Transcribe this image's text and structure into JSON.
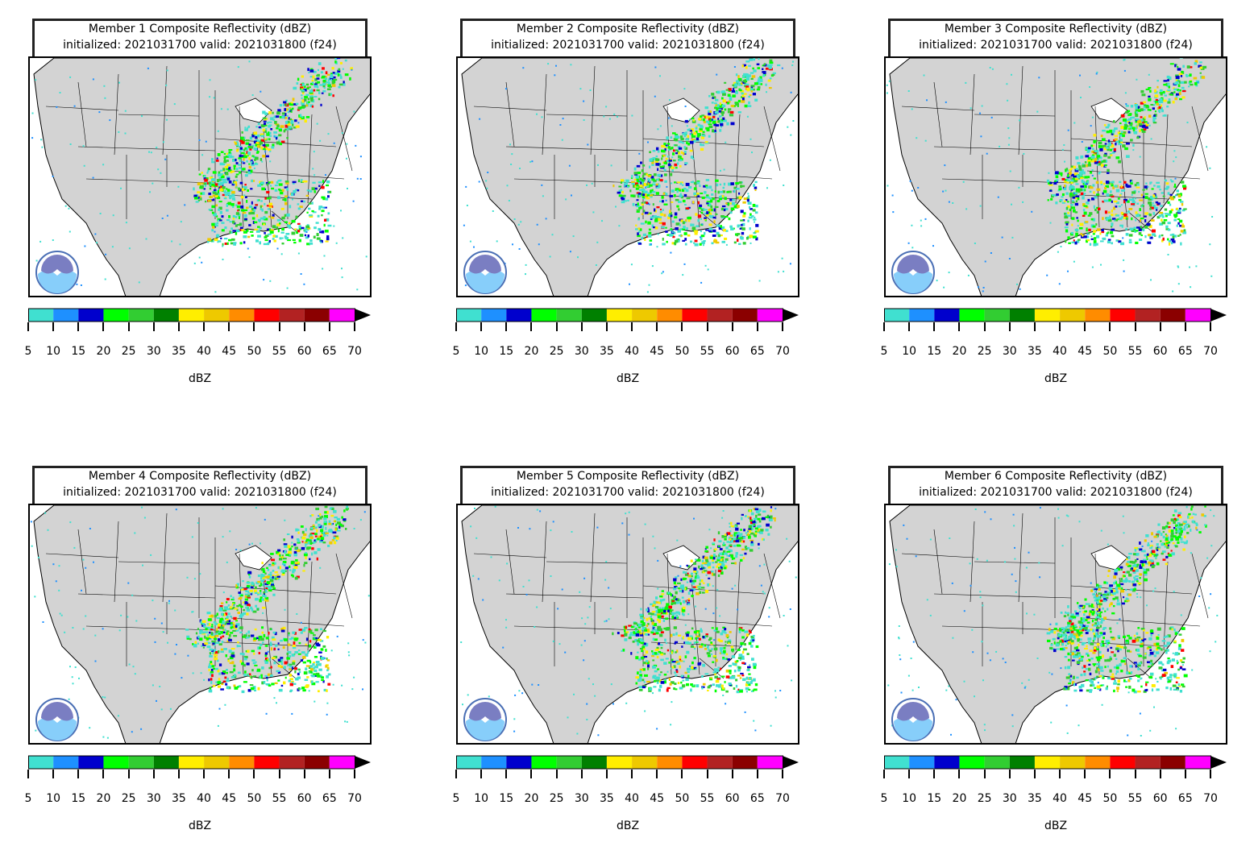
{
  "panels": [
    {
      "title": "Member 1 Composite Reflectivity (dBZ)",
      "subtitle": "initialized: 2021031700 valid: 2021031800 (f24)"
    },
    {
      "title": "Member 2 Composite Reflectivity (dBZ)",
      "subtitle": "initialized: 2021031700 valid: 2021031800 (f24)"
    },
    {
      "title": "Member 3 Composite Reflectivity (dBZ)",
      "subtitle": "initialized: 2021031700 valid: 2021031800 (f24)"
    },
    {
      "title": "Member 4 Composite Reflectivity (dBZ)",
      "subtitle": "initialized: 2021031700 valid: 2021031800 (f24)"
    },
    {
      "title": "Member 5 Composite Reflectivity (dBZ)",
      "subtitle": "initialized: 2021031700 valid: 2021031800 (f24)"
    },
    {
      "title": "Member 6 Composite Reflectivity (dBZ)",
      "subtitle": "initialized: 2021031700 valid: 2021031800 (f24)"
    }
  ],
  "colorbar": {
    "unit": "dBZ",
    "ticks": [
      "5",
      "10",
      "15",
      "20",
      "25",
      "30",
      "35",
      "40",
      "45",
      "50",
      "55",
      "60",
      "65",
      "70"
    ],
    "colors": [
      "#40e0d0",
      "#1e90ff",
      "#0000cd",
      "#00ff00",
      "#32cd32",
      "#008000",
      "#ffee00",
      "#eec900",
      "#ff8c00",
      "#ff0000",
      "#b22222",
      "#8b0000",
      "#ff00ff"
    ],
    "extend_color": "#000000"
  },
  "map": {
    "land_color": "#d3d3d3",
    "water_color": "#ffffff",
    "border_color": "#000000",
    "logo": "noaa-logo"
  }
}
